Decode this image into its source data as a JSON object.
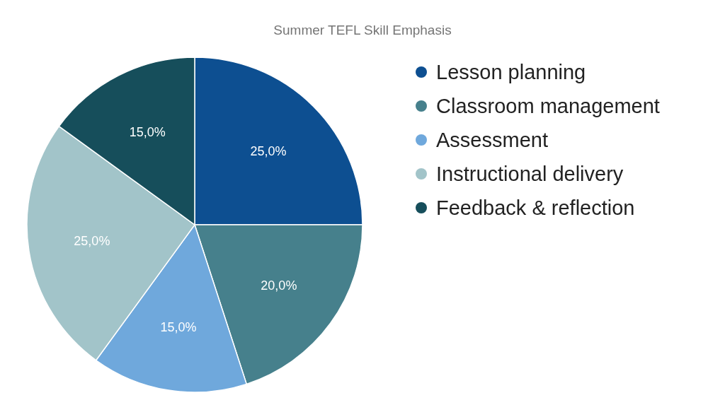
{
  "chart_data": {
    "type": "pie",
    "title": "Summer TEFL Skill Emphasis",
    "categories": [
      "Lesson planning",
      "Classroom management",
      "Assessment",
      "Instructional delivery",
      "Feedback & reflection"
    ],
    "values": [
      25,
      20,
      15,
      25,
      15
    ],
    "colors": [
      "#0d4f91",
      "#46808c",
      "#6fa8dc",
      "#a2c4c9",
      "#164e5b"
    ],
    "value_labels": [
      "25,0%",
      "20,0%",
      "15,0%",
      "25,0%",
      "15,0%"
    ],
    "legend": "right"
  }
}
